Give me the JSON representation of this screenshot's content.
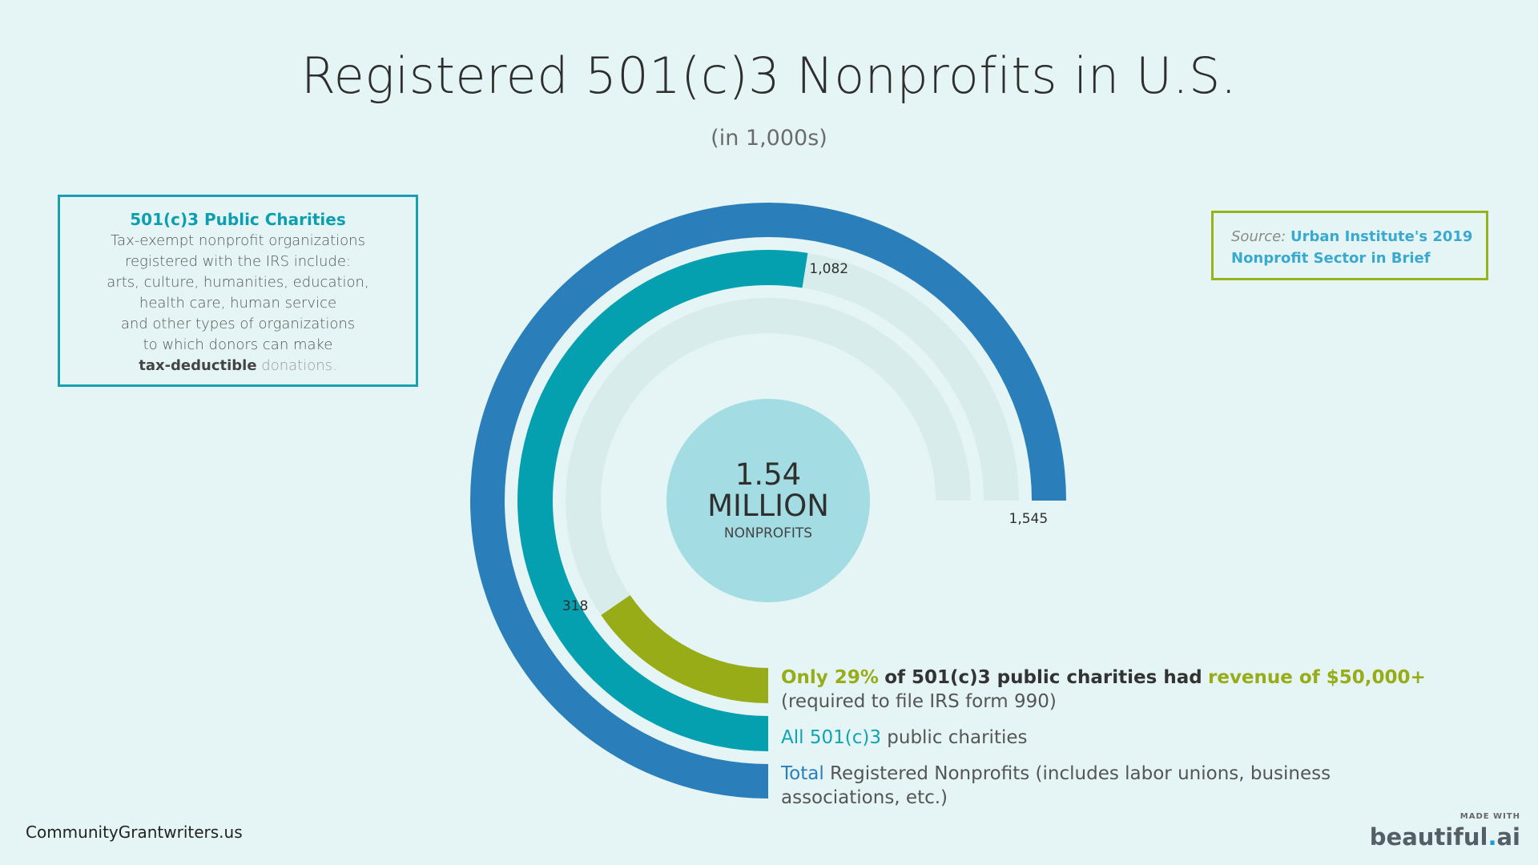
{
  "title": "Registered 501(c)3 Nonprofits in U.S.",
  "subtitle": "(in 1,000s)",
  "info_box": {
    "heading": "501(c)3 Public Charities",
    "lines": [
      "Tax-exempt nonprofit organizations",
      "registered with the IRS include:",
      "arts, culture, humanities, education,",
      "health care, human service",
      "and other types of organizations",
      "to which donors can make"
    ],
    "emphasis": "tax-deductible",
    "tail": "donations."
  },
  "source": {
    "label": "Source:",
    "text_line1": "Urban Institute's 2019",
    "text_line2": "Nonprofit Sector in Brief"
  },
  "center": {
    "value": "1.54",
    "unit": "MILLION",
    "caption": "NONPROFITS"
  },
  "legend": {
    "green_pre": "Only 29%",
    "green_mid": "of 501(c)3 public charities had",
    "green_post": "revenue of $50,000+",
    "green_sub": "(required to file IRS form 990)",
    "teal_pre": "All 501(c)3",
    "teal_post": "public charities",
    "blue_pre": "Total",
    "blue_post": "Registered Nonprofits (includes labor unions, business associations, etc.)"
  },
  "footer": {
    "site": "CommunityGrantwriters.us",
    "made_with": "MADE WITH",
    "brand_a": "beautiful",
    "brand_dot": ".",
    "brand_b": "ai"
  },
  "chart_data": {
    "type": "radial-bar",
    "title": "Registered 501(c)3 Nonprofits in U.S.",
    "subtitle": "(in 1,000s)",
    "max": 1545,
    "series": [
      {
        "name": "Total Registered Nonprofits",
        "value": 1545,
        "label": "1,545",
        "color": "#2a7fba"
      },
      {
        "name": "All 501(c)3 public charities",
        "value": 1082,
        "label": "1,082",
        "color": "#05a0b0"
      },
      {
        "name": "501(c)3 public charities with revenue of $50,000+",
        "value": 318,
        "label": "318",
        "color": "#97ac16"
      }
    ],
    "track_color": "#d9ecec"
  }
}
